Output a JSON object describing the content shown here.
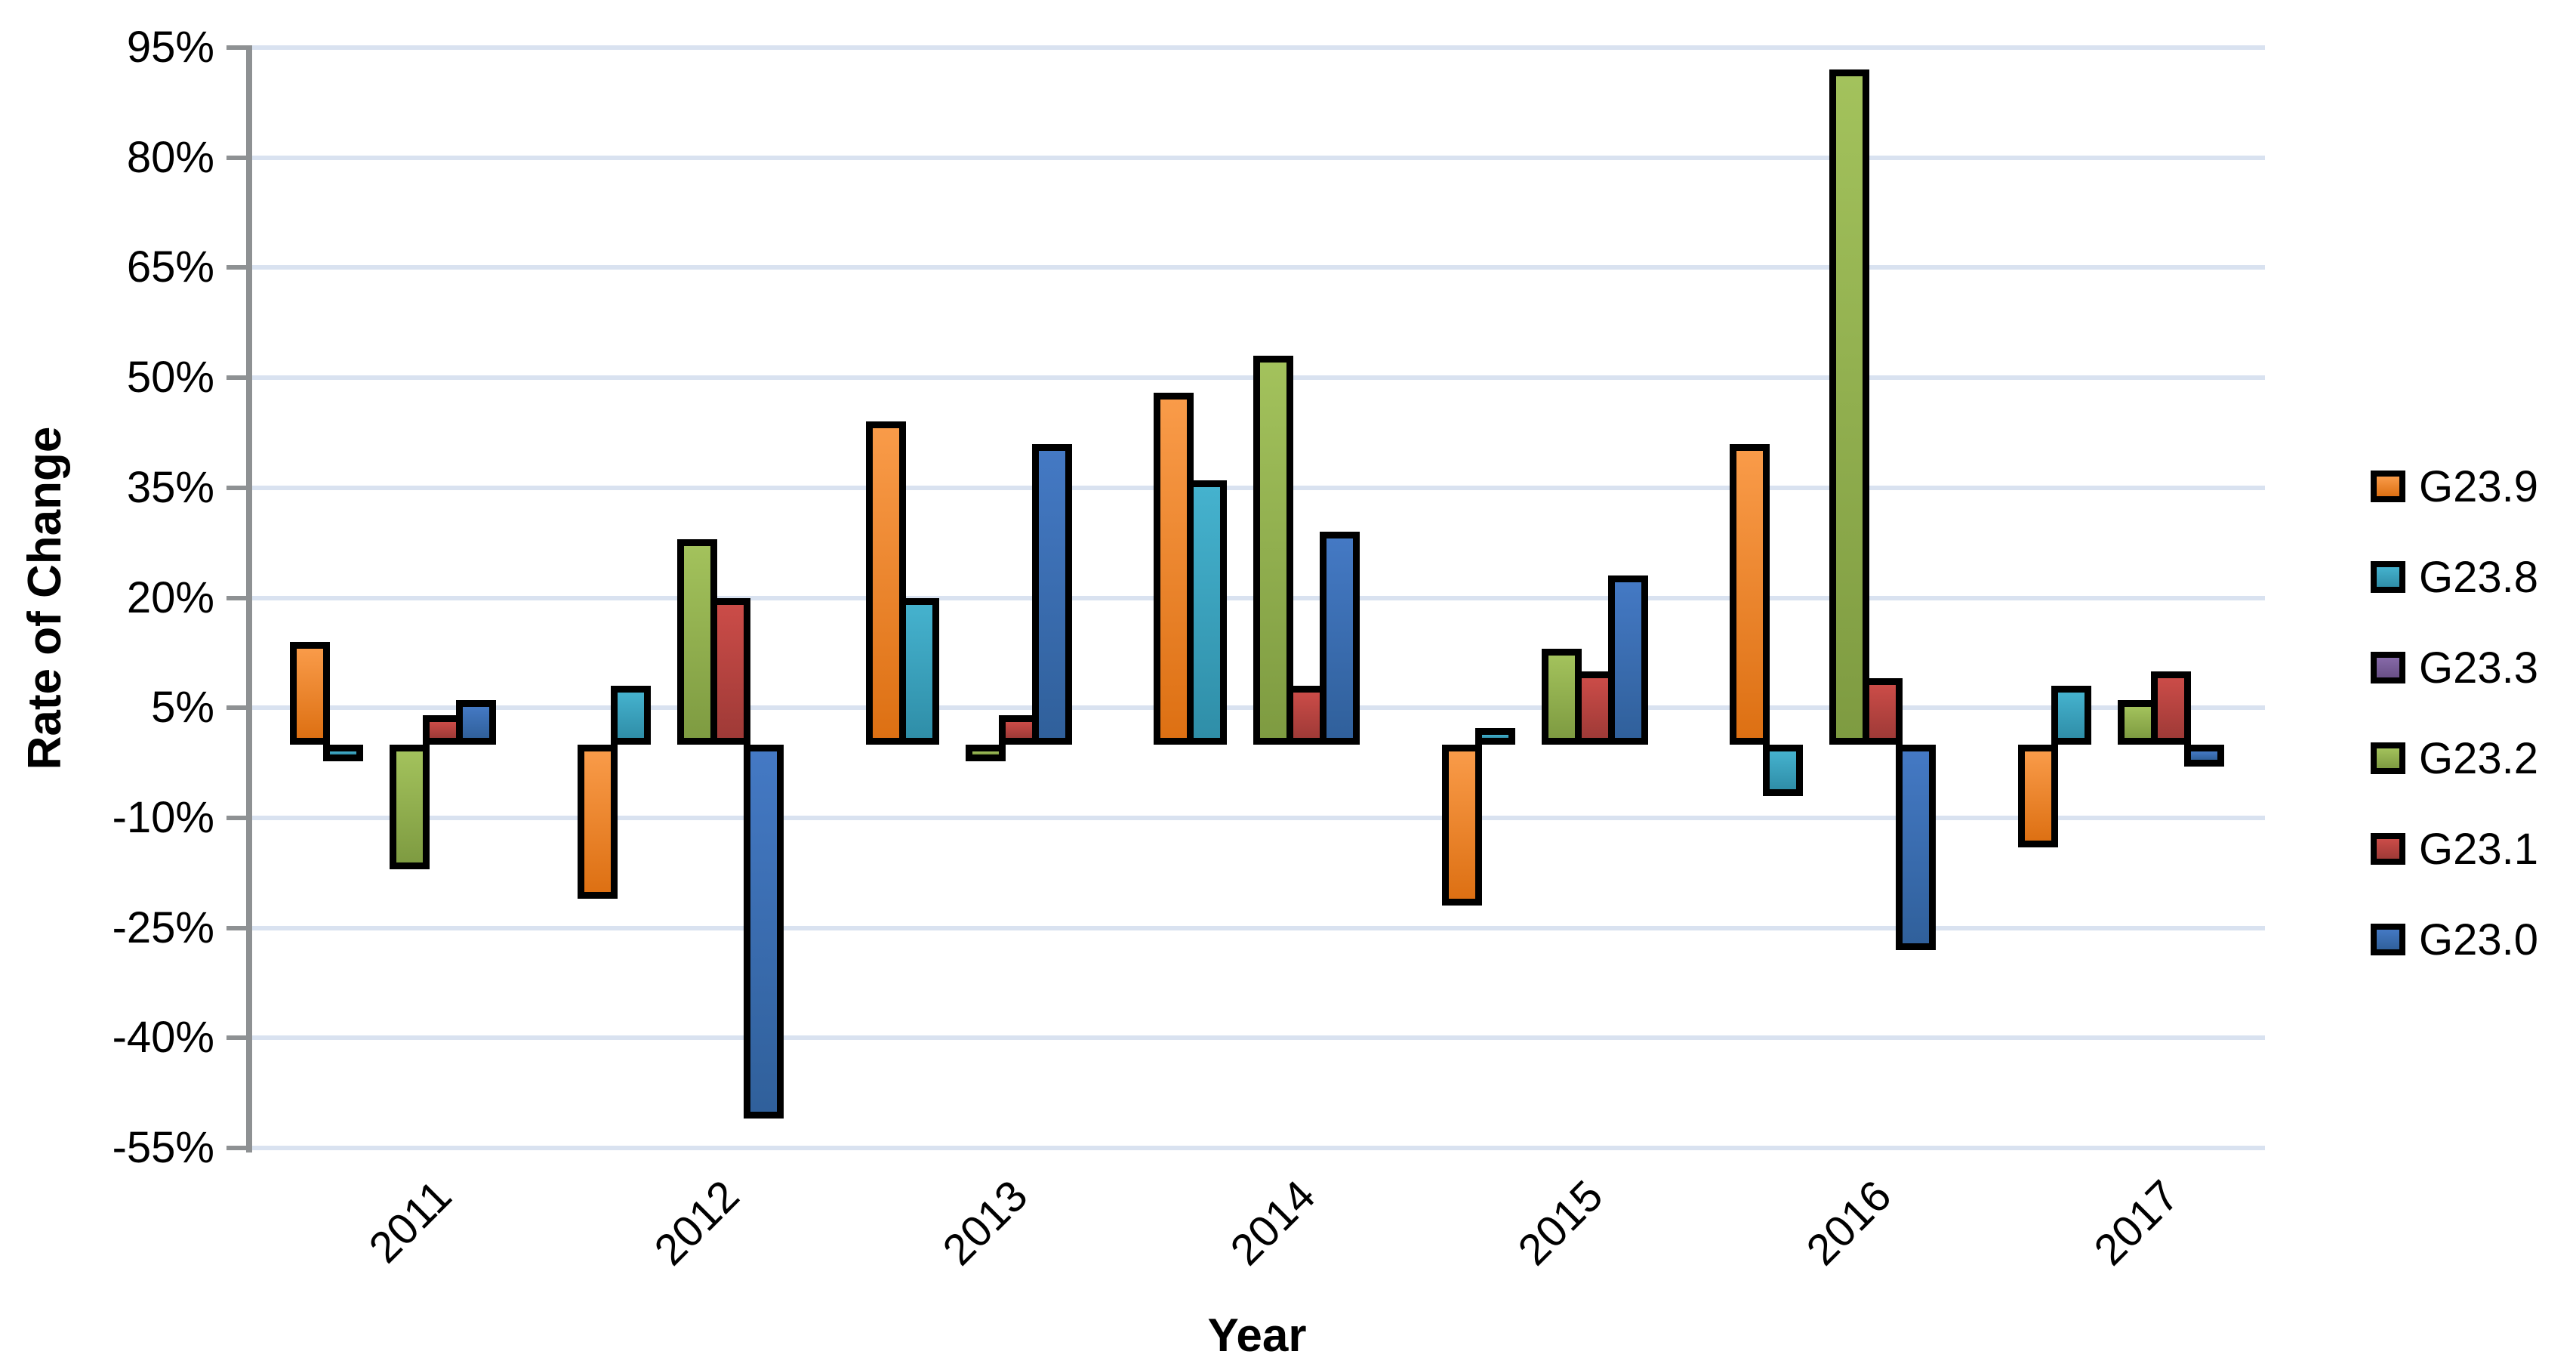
{
  "chart_data": {
    "type": "bar",
    "title": "",
    "xlabel": "Year",
    "ylabel": "Rate of Change",
    "categories": [
      "2011",
      "2012",
      "2013",
      "2014",
      "2015",
      "2016",
      "2017"
    ],
    "series": [
      {
        "name": "G23.9",
        "color_light": "#F99B49",
        "color_dark": "#DD7013",
        "values": [
          14,
          -21,
          44,
          48,
          -22,
          41,
          -14
        ]
      },
      {
        "name": "G23.8",
        "color_light": "#45B2CE",
        "color_dark": "#2F8EA8",
        "values": [
          -1,
          8,
          20,
          36,
          2,
          -7,
          8
        ]
      },
      {
        "name": "G23.3",
        "color_light": "#8669A8",
        "color_dark": "#695087",
        "values": [
          0,
          0,
          0,
          0,
          0,
          0,
          0
        ]
      },
      {
        "name": "G23.2",
        "color_light": "#A3C25C",
        "color_dark": "#7E9B41",
        "values": [
          -17,
          28,
          -2,
          53,
          13,
          92,
          6
        ]
      },
      {
        "name": "G23.1",
        "color_light": "#CB4C48",
        "color_dark": "#9F3A37",
        "values": [
          4,
          20,
          4,
          8,
          10,
          9,
          10
        ]
      },
      {
        "name": "G23.0",
        "color_light": "#4479C4",
        "color_dark": "#30609B",
        "values": [
          6,
          -51,
          41,
          29,
          23,
          -28,
          -3
        ]
      }
    ],
    "y_ticks": [
      95,
      80,
      65,
      50,
      35,
      20,
      5,
      -10,
      -25,
      -40,
      -55
    ],
    "y_tick_labels": [
      "95%",
      "80%",
      "65%",
      "50%",
      "35%",
      "20%",
      "5%",
      "-10%",
      "-25%",
      "-40%",
      "-55%"
    ],
    "ylim": [
      -55,
      95
    ],
    "grid": true,
    "gridline_color": "#D9E2F0",
    "axis_color": "#8E9193",
    "bar_border_color": "#000000",
    "legend_position": "right"
  }
}
